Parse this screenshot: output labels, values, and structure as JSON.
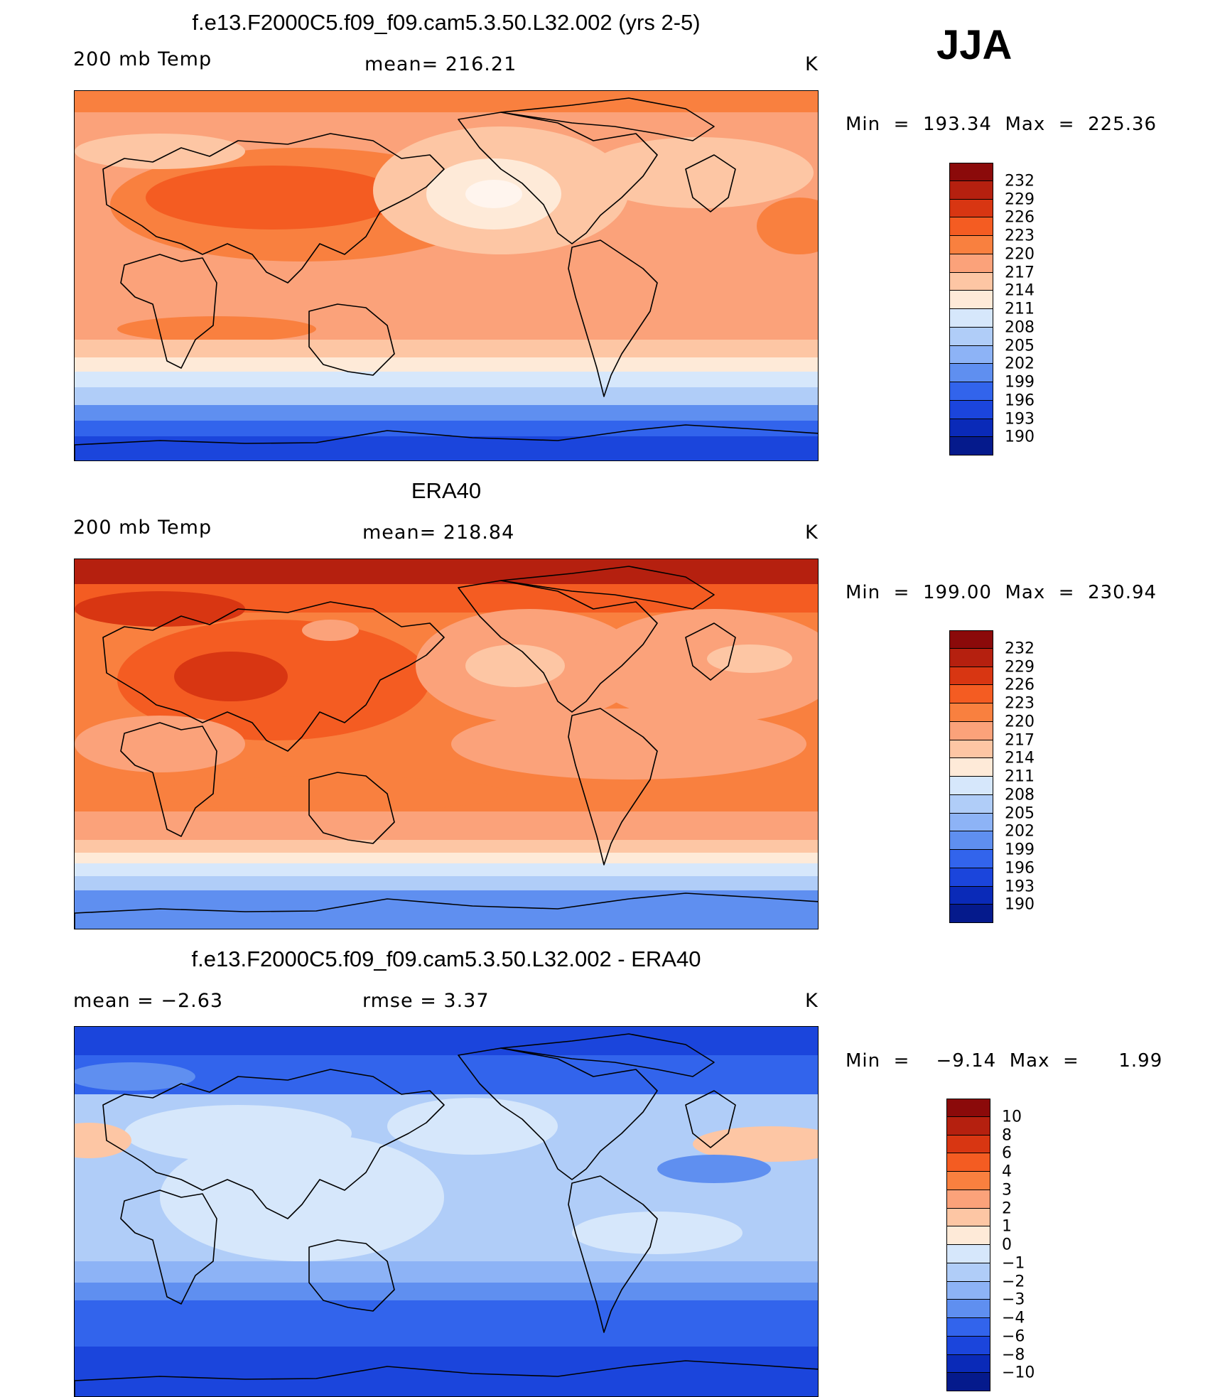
{
  "season": "JJA",
  "panels": [
    {
      "title": "f.e13.F2000C5.f09_f09.cam5.3.50.L32.002 (yrs 2-5)",
      "left_label": "200 mb Temp",
      "center_label": "mean= 216.21",
      "units": "K",
      "minmax": "Min  =  193.34  Max  =  225.36",
      "field": "model"
    },
    {
      "title": "ERA40",
      "left_label": "200 mb Temp",
      "center_label": "mean= 218.84",
      "units": "K",
      "minmax": "Min  =  199.00  Max  =  230.94",
      "field": "obs"
    },
    {
      "title": "f.e13.F2000C5.f09_f09.cam5.3.50.L32.002 - ERA40",
      "left_label": "mean  =     −2.63",
      "center_label": "rmse  =     3.37",
      "units": "K",
      "minmax": "Min  =    −9.14  Max  =      1.99",
      "field": "diff"
    }
  ],
  "colorbars": [
    {
      "labels": [
        "232",
        "229",
        "226",
        "223",
        "220",
        "217",
        "214",
        "211",
        "208",
        "205",
        "202",
        "199",
        "196",
        "193",
        "190"
      ],
      "colors": [
        "#8b0a0a",
        "#b5200f",
        "#d83612",
        "#f45c22",
        "#f9803f",
        "#fba27a",
        "#fdc6a4",
        "#feead8",
        "#d6e7fb",
        "#b0cdf8",
        "#8db3f6",
        "#5f8ff0",
        "#3264ec",
        "#1b45dc",
        "#0a2ab8",
        "#051a8c"
      ]
    },
    {
      "labels": [
        "232",
        "229",
        "226",
        "223",
        "220",
        "217",
        "214",
        "211",
        "208",
        "205",
        "202",
        "199",
        "196",
        "193",
        "190"
      ],
      "colors": [
        "#8b0a0a",
        "#b5200f",
        "#d83612",
        "#f45c22",
        "#f9803f",
        "#fba27a",
        "#fdc6a4",
        "#feead8",
        "#d6e7fb",
        "#b0cdf8",
        "#8db3f6",
        "#5f8ff0",
        "#3264ec",
        "#1b45dc",
        "#0a2ab8",
        "#051a8c"
      ]
    },
    {
      "labels": [
        "10",
        "8",
        "6",
        "4",
        "3",
        "2",
        "1",
        "0",
        "−1",
        "−2",
        "−3",
        "−4",
        "−6",
        "−8",
        "−10"
      ],
      "colors": [
        "#8b0a0a",
        "#b5200f",
        "#d83612",
        "#f45c22",
        "#f9803f",
        "#fba27a",
        "#fdc6a4",
        "#feead8",
        "#d6e7fb",
        "#b0cdf8",
        "#8db3f6",
        "#5f8ff0",
        "#3264ec",
        "#1b45dc",
        "#0a2ab8",
        "#051a8c"
      ]
    }
  ]
}
